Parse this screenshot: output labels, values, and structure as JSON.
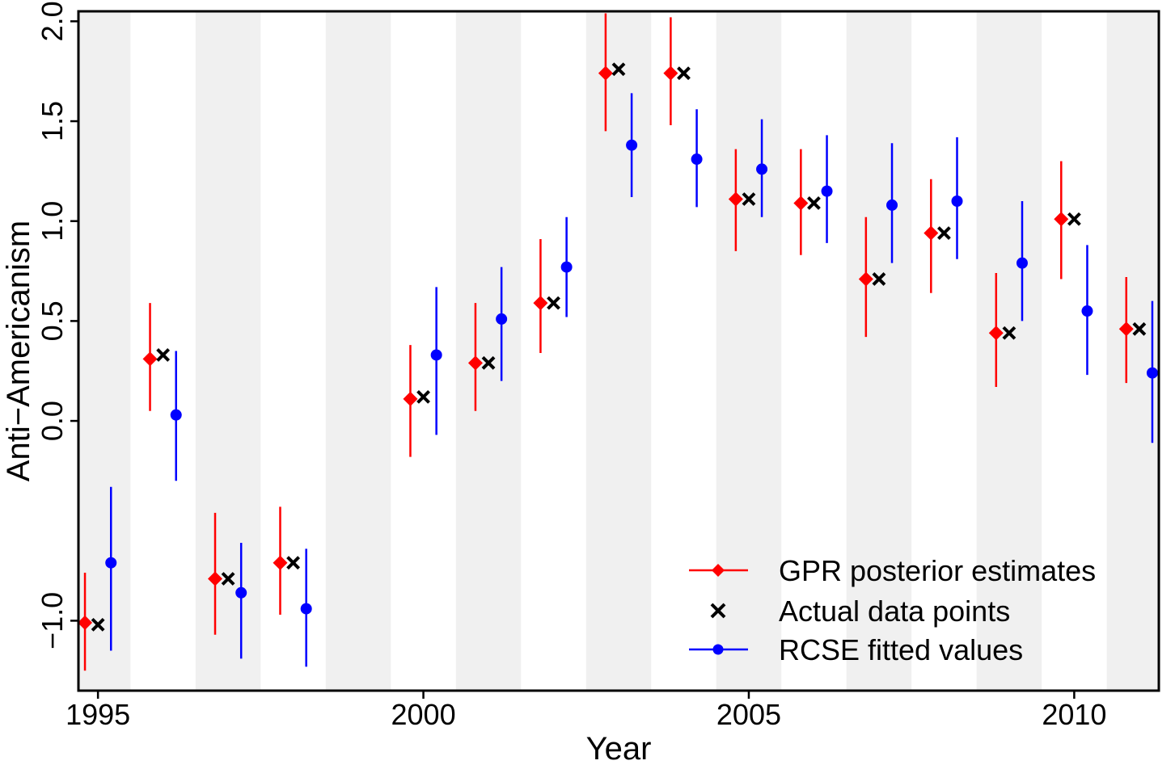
{
  "chart_data": {
    "type": "scatter",
    "xlabel": "Year",
    "ylabel": "Anti−Americanism",
    "xlim": [
      1994.7,
      2011.3
    ],
    "ylim": [
      -1.35,
      2.05
    ],
    "x_ticks": [
      1995,
      2000,
      2005,
      2010
    ],
    "x_tick_labels": [
      "1995",
      "2000",
      "2005",
      "2010"
    ],
    "y_ticks": [
      -1.0,
      0.0,
      0.5,
      1.0,
      1.5,
      2.0
    ],
    "y_tick_labels": [
      "−1.0",
      "0.0",
      "0.5",
      "1.0",
      "1.5",
      "2.0"
    ],
    "background": "alternating grey vertical bands per year",
    "legend_placement": "bottom-right",
    "series": [
      {
        "name": "GPR posterior estimates",
        "color": "#ff0000",
        "marker": "diamond",
        "x": [
          1995,
          1996,
          1997,
          1998,
          2000,
          2001,
          2002,
          2003,
          2004,
          2005,
          2006,
          2007,
          2008,
          2009,
          2010,
          2011
        ],
        "y": [
          -1.01,
          0.31,
          -0.79,
          -0.71,
          0.11,
          0.29,
          0.59,
          1.74,
          1.74,
          1.11,
          1.09,
          0.71,
          0.94,
          0.44,
          1.01,
          0.46
        ],
        "lower": [
          -1.25,
          0.05,
          -1.07,
          -0.97,
          -0.18,
          0.05,
          0.34,
          1.45,
          1.48,
          0.85,
          0.83,
          0.42,
          0.64,
          0.17,
          0.71,
          0.19
        ],
        "upper": [
          -0.76,
          0.59,
          -0.46,
          -0.43,
          0.38,
          0.59,
          0.91,
          2.04,
          2.02,
          1.36,
          1.36,
          1.02,
          1.21,
          0.74,
          1.3,
          0.72
        ]
      },
      {
        "name": "Actual data points",
        "color": "#000000",
        "marker": "x",
        "x": [
          1995,
          1996,
          1997,
          1998,
          2000,
          2001,
          2002,
          2003,
          2004,
          2005,
          2006,
          2007,
          2008,
          2009,
          2010,
          2011
        ],
        "y": [
          -1.02,
          0.33,
          -0.79,
          -0.71,
          0.12,
          0.29,
          0.59,
          1.76,
          1.74,
          1.11,
          1.09,
          0.71,
          0.94,
          0.44,
          1.01,
          0.46
        ]
      },
      {
        "name": "RCSE fitted values",
        "color": "#0000ff",
        "marker": "circle",
        "x": [
          1995,
          1996,
          1997,
          1998,
          2000,
          2001,
          2002,
          2003,
          2004,
          2005,
          2006,
          2007,
          2008,
          2009,
          2010,
          2011
        ],
        "y": [
          -0.71,
          0.03,
          -0.86,
          -0.94,
          0.33,
          0.51,
          0.77,
          1.38,
          1.31,
          1.26,
          1.15,
          1.08,
          1.1,
          0.79,
          0.55,
          0.24
        ],
        "lower": [
          -1.15,
          -0.3,
          -1.19,
          -1.23,
          -0.07,
          0.2,
          0.52,
          1.12,
          1.07,
          1.02,
          0.89,
          0.79,
          0.81,
          0.5,
          0.23,
          -0.11
        ],
        "upper": [
          -0.33,
          0.35,
          -0.61,
          -0.64,
          0.67,
          0.77,
          1.02,
          1.64,
          1.56,
          1.51,
          1.43,
          1.39,
          1.42,
          1.1,
          0.88,
          0.6
        ]
      }
    ]
  }
}
